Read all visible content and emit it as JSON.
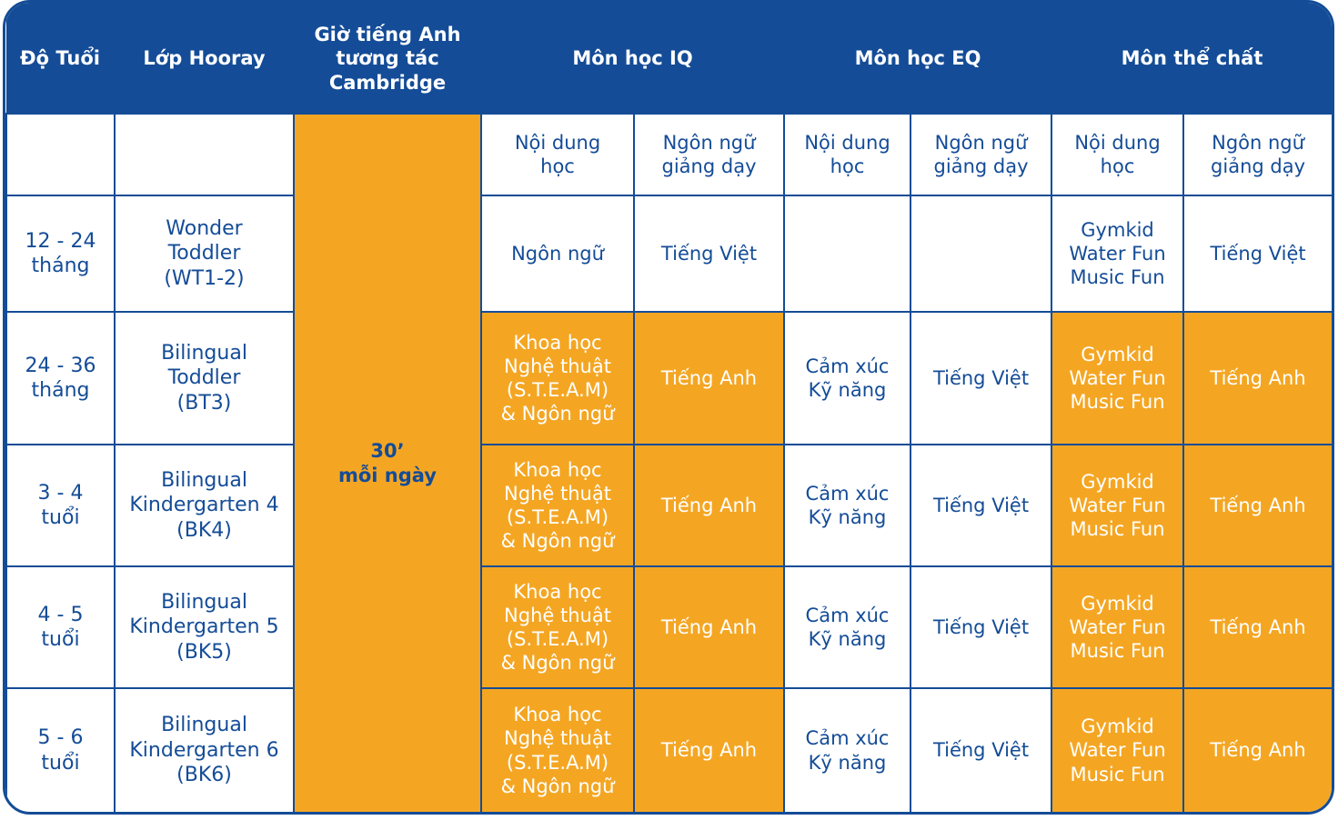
{
  "header": {
    "age": "Độ Tuổi",
    "klass": "Lớp Hooray",
    "english": "Giờ tiếng Anh\ntương tác\nCambridge",
    "iq": "Môn học IQ",
    "eq": "Môn học EQ",
    "pe": "Môn thể chất"
  },
  "subheader": {
    "content": "Nội dung\nhọc",
    "language": "Ngôn ngữ\ngiảng dạy"
  },
  "english_hours": "30’\nmỗi ngày",
  "rows": [
    {
      "age": "12 - 24\ntháng",
      "klass": "Wonder\nToddler\n(WT1-2)",
      "iq_content": "Ngôn ngữ",
      "iq_lang": "Tiếng Việt",
      "eq_content": "",
      "eq_lang": "",
      "pe_content": "Gymkid\nWater Fun\nMusic Fun",
      "pe_lang": "Tiếng Việt"
    },
    {
      "age": "24 - 36\ntháng",
      "klass": "Bilingual\nToddler\n(BT3)",
      "iq_content": "Khoa học\nNghệ thuật\n(S.T.E.A.M)\n& Ngôn ngữ",
      "iq_lang": "Tiếng Anh",
      "eq_content": "Cảm xúc\nKỹ năng",
      "eq_lang": "Tiếng Việt",
      "pe_content": "Gymkid\nWater Fun\nMusic Fun",
      "pe_lang": "Tiếng Anh"
    },
    {
      "age": "3 - 4\ntuổi",
      "klass": "Bilingual\nKindergarten 4\n(BK4)",
      "iq_content": "Khoa học\nNghệ thuật\n(S.T.E.A.M)\n& Ngôn ngữ",
      "iq_lang": "Tiếng Anh",
      "eq_content": "Cảm xúc\nKỹ năng",
      "eq_lang": "Tiếng Việt",
      "pe_content": "Gymkid\nWater Fun\nMusic Fun",
      "pe_lang": "Tiếng Anh"
    },
    {
      "age": "4 - 5\ntuổi",
      "klass": "Bilingual\nKindergarten 5\n(BK5)",
      "iq_content": "Khoa học\nNghệ thuật\n(S.T.E.A.M)\n& Ngôn ngữ",
      "iq_lang": "Tiếng Anh",
      "eq_content": "Cảm xúc\nKỹ năng",
      "eq_lang": "Tiếng Việt",
      "pe_content": "Gymkid\nWater Fun\nMusic Fun",
      "pe_lang": "Tiếng Anh"
    },
    {
      "age": "5 - 6\ntuổi",
      "klass": "Bilingual\nKindergarten 6\n(BK6)",
      "iq_content": "Khoa học\nNghệ thuật\n(S.T.E.A.M)\n& Ngôn ngữ",
      "iq_lang": "Tiếng Anh",
      "eq_content": "Cảm xúc\nKỹ năng",
      "eq_lang": "Tiếng Việt",
      "pe_content": "Gymkid\nWater Fun\nMusic Fun",
      "pe_lang": "Tiếng Anh"
    }
  ],
  "colors": {
    "primary": "#144c97",
    "accent": "#f4a623",
    "background": "#ffffff"
  }
}
